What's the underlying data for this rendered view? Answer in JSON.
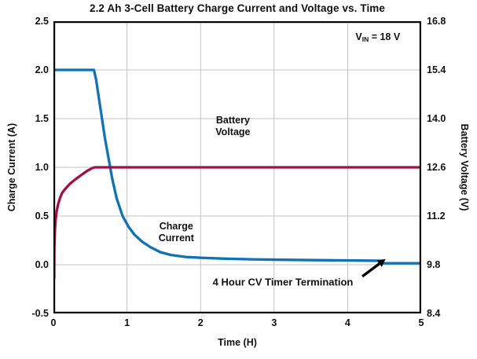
{
  "title": "2.2 Ah 3-Cell Battery Charge Current and Voltage vs. Time",
  "colors": {
    "charge_current_line": "#0f72b6",
    "battery_voltage_line": "#a31048",
    "grid": "#c2c2c2",
    "axis_border": "#000000",
    "text": "#111111",
    "annotation_arrow": "#000000",
    "background": "#ffffff"
  },
  "chart_data": {
    "type": "line",
    "title": "2.2 Ah 3-Cell Battery Charge Current and Voltage vs. Time",
    "xlabel": "Time (H)",
    "ylabel_left": "Charge Current (A)",
    "ylabel_right": "Battery Voltage (V)",
    "xlim": [
      0,
      5
    ],
    "ylim_left": [
      -0.5,
      2.5
    ],
    "ylim_right": [
      8.4,
      16.8
    ],
    "grid": true,
    "x_ticks": {
      "values": [
        0,
        1,
        2,
        3,
        4,
        5
      ],
      "labels": [
        "0",
        "1",
        "2",
        "3",
        "4",
        "5"
      ]
    },
    "y_ticks_left": {
      "values": [
        2.5,
        2.0,
        1.5,
        1.0,
        0.5,
        0.0,
        -0.5
      ],
      "labels": [
        "2.5",
        "2.0",
        "1.5",
        "1.0",
        "0.5",
        "0.0",
        "-0.5"
      ]
    },
    "y_ticks_right": {
      "values": [
        16.8,
        15.4,
        14.0,
        12.6,
        11.2,
        9.8,
        8.4
      ],
      "labels": [
        "16.8",
        "15.4",
        "14.0",
        "12.6",
        "11.2",
        "9.8",
        "8.4"
      ]
    },
    "grid_x": [
      1,
      2,
      3,
      4
    ],
    "grid_y": [
      0.0,
      0.5,
      1.0,
      1.5,
      2.0
    ],
    "series": [
      {
        "name": "Charge Current",
        "axis": "left",
        "color": "#0f72b6",
        "points": [
          [
            0,
            2.0
          ],
          [
            0.55,
            2.0
          ],
          [
            0.58,
            1.9
          ],
          [
            0.64,
            1.6
          ],
          [
            0.7,
            1.3
          ],
          [
            0.76,
            1.05
          ],
          [
            0.8,
            0.88
          ],
          [
            0.86,
            0.68
          ],
          [
            0.94,
            0.5
          ],
          [
            1.02,
            0.39
          ],
          [
            1.1,
            0.31
          ],
          [
            1.2,
            0.24
          ],
          [
            1.32,
            0.18
          ],
          [
            1.45,
            0.13
          ],
          [
            1.6,
            0.1
          ],
          [
            1.8,
            0.08
          ],
          [
            2.0,
            0.072
          ],
          [
            2.3,
            0.063
          ],
          [
            2.7,
            0.056
          ],
          [
            3.1,
            0.051
          ],
          [
            3.6,
            0.047
          ],
          [
            4.0,
            0.044
          ],
          [
            4.3,
            0.042
          ],
          [
            4.47,
            0.04
          ],
          [
            4.49,
            0.015
          ],
          [
            5.0,
            0.015
          ]
        ]
      },
      {
        "name": "Battery Voltage",
        "axis": "right",
        "color": "#a31048",
        "points": [
          [
            0.01,
            9.39
          ],
          [
            0.012,
            10.3
          ],
          [
            0.02,
            10.8
          ],
          [
            0.03,
            11.1
          ],
          [
            0.045,
            11.35
          ],
          [
            0.065,
            11.55
          ],
          [
            0.09,
            11.72
          ],
          [
            0.12,
            11.87
          ],
          [
            0.16,
            11.98
          ],
          [
            0.22,
            12.12
          ],
          [
            0.3,
            12.26
          ],
          [
            0.38,
            12.38
          ],
          [
            0.46,
            12.5
          ],
          [
            0.52,
            12.57
          ],
          [
            0.56,
            12.6
          ],
          [
            5.0,
            12.6
          ]
        ]
      }
    ],
    "annotations": {
      "vin": {
        "prefix": "V",
        "sub": "IN",
        "suffix": " = 18 V",
        "x": 4.41,
        "y": 2.32
      },
      "battery_voltage": {
        "line1": "Battery",
        "line2": "Voltage",
        "x": 2.44,
        "y": 1.42
      },
      "charge_current": {
        "line1": "Charge",
        "line2": "Current",
        "x": 1.67,
        "y": 0.33
      },
      "cv_timer": {
        "text": "4 Hour CV Timer Termination",
        "x": 3.12,
        "y": -0.18,
        "arrow": {
          "from": [
            4.2,
            -0.12
          ],
          "to": [
            4.43,
            0.01
          ]
        }
      }
    }
  }
}
